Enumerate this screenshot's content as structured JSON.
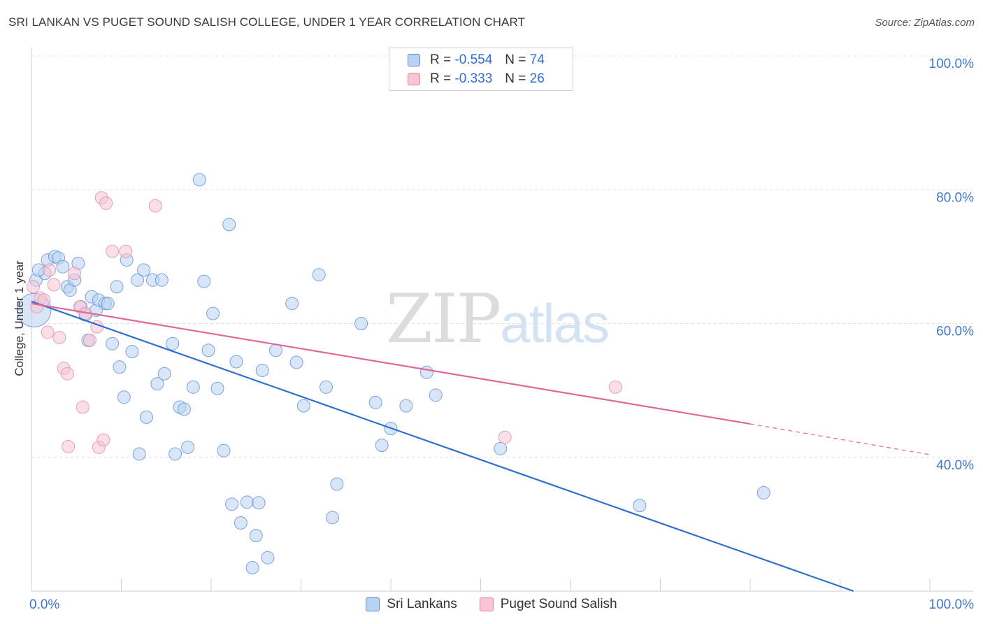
{
  "title": "SRI LANKAN VS PUGET SOUND SALISH COLLEGE, UNDER 1 YEAR CORRELATION CHART",
  "source": "Source: ZipAtlas.com",
  "watermark": {
    "zip": "ZIP",
    "atlas": "atlas"
  },
  "legend": [
    {
      "r_label": "R = ",
      "r_value": "-0.554",
      "n_label": "N = ",
      "n_value": "74",
      "fill": "#b8d2f3",
      "stroke": "#5b8fd6"
    },
    {
      "r_label": "R = ",
      "r_value": "-0.333",
      "n_label": "N = ",
      "n_value": "26",
      "fill": "#f8c4d4",
      "stroke": "#e58aa5"
    }
  ],
  "chart_data": {
    "type": "scatter",
    "xlabel": "",
    "ylabel": "College, Under 1 year",
    "xlim": [
      0,
      100
    ],
    "ylim": [
      20,
      100
    ],
    "x_tick_labels": [
      {
        "value": 0,
        "label": "0.0%"
      },
      {
        "value": 100,
        "label": "100.0%"
      }
    ],
    "y_tick_labels": [
      {
        "value": 100,
        "label": "100.0%"
      },
      {
        "value": 80,
        "label": "80.0%"
      },
      {
        "value": 60,
        "label": "60.0%"
      },
      {
        "value": 40,
        "label": "40.0%"
      }
    ],
    "grid": "horizontal dashed",
    "series": [
      {
        "name": "Sri Lankans",
        "color": "#5b8fd6",
        "fill": "#b8d2f3",
        "trend": {
          "x1": 0,
          "y1": 63.3,
          "x2": 91.5,
          "y2": 20
        },
        "points": [
          [
            0.3,
            62.0
          ],
          [
            0.5,
            66.5
          ],
          [
            1.5,
            67.5
          ],
          [
            1.8,
            69.5
          ],
          [
            2.6,
            70.0
          ],
          [
            3.0,
            69.8
          ],
          [
            3.5,
            68.5
          ],
          [
            4.0,
            65.5
          ],
          [
            4.3,
            65.0
          ],
          [
            4.8,
            66.5
          ],
          [
            5.2,
            69.0
          ],
          [
            5.5,
            62.5
          ],
          [
            6.0,
            61.3
          ],
          [
            6.3,
            57.5
          ],
          [
            6.7,
            64.0
          ],
          [
            7.2,
            62.0
          ],
          [
            7.5,
            63.5
          ],
          [
            8.2,
            63.0
          ],
          [
            8.5,
            63.0
          ],
          [
            9.0,
            57.0
          ],
          [
            9.5,
            65.5
          ],
          [
            9.8,
            53.5
          ],
          [
            10.3,
            49.0
          ],
          [
            10.6,
            69.5
          ],
          [
            11.2,
            55.8
          ],
          [
            11.8,
            66.5
          ],
          [
            12.0,
            40.5
          ],
          [
            12.5,
            68.0
          ],
          [
            12.8,
            46.0
          ],
          [
            13.5,
            66.5
          ],
          [
            14.0,
            51.0
          ],
          [
            14.5,
            66.5
          ],
          [
            14.8,
            52.5
          ],
          [
            15.7,
            57.0
          ],
          [
            16.0,
            40.5
          ],
          [
            16.5,
            47.5
          ],
          [
            17.0,
            47.2
          ],
          [
            17.4,
            41.5
          ],
          [
            18.0,
            50.5
          ],
          [
            18.7,
            81.5
          ],
          [
            19.2,
            66.3
          ],
          [
            19.7,
            56.0
          ],
          [
            20.2,
            61.5
          ],
          [
            20.7,
            50.3
          ],
          [
            21.4,
            41.0
          ],
          [
            22.0,
            74.8
          ],
          [
            22.3,
            33.0
          ],
          [
            22.8,
            54.3
          ],
          [
            23.3,
            30.2
          ],
          [
            24.0,
            33.3
          ],
          [
            24.6,
            23.5
          ],
          [
            25.0,
            28.3
          ],
          [
            25.3,
            33.2
          ],
          [
            25.7,
            53.0
          ],
          [
            26.3,
            25.0
          ],
          [
            27.2,
            56.0
          ],
          [
            29.0,
            63.0
          ],
          [
            29.5,
            54.2
          ],
          [
            30.3,
            47.7
          ],
          [
            32.0,
            67.3
          ],
          [
            32.8,
            50.5
          ],
          [
            33.5,
            31.0
          ],
          [
            34.0,
            36.0
          ],
          [
            36.7,
            60.0
          ],
          [
            38.3,
            48.2
          ],
          [
            39.0,
            41.8
          ],
          [
            40.0,
            44.3
          ],
          [
            41.7,
            47.7
          ],
          [
            44.0,
            52.7
          ],
          [
            45.0,
            49.3
          ],
          [
            52.2,
            41.3
          ],
          [
            67.7,
            32.8
          ],
          [
            81.5,
            34.7
          ],
          [
            0.8,
            68.0
          ]
        ]
      },
      {
        "name": "Puget Sound Salish",
        "color": "#e58aa5",
        "fill": "#f8c4d4",
        "trend": {
          "x1": 0,
          "y1": 63.0,
          "x2": 80,
          "y2": 45.0,
          "dash_to_x": 100,
          "dash_to_y": 40.4
        },
        "points": [
          [
            0.2,
            65.5
          ],
          [
            0.6,
            62.5
          ],
          [
            1.0,
            63.8
          ],
          [
            1.4,
            63.5
          ],
          [
            1.8,
            58.7
          ],
          [
            2.0,
            68.0
          ],
          [
            2.5,
            65.8
          ],
          [
            3.1,
            57.9
          ],
          [
            3.6,
            53.3
          ],
          [
            4.0,
            52.5
          ],
          [
            4.1,
            41.6
          ],
          [
            4.8,
            67.5
          ],
          [
            5.4,
            62.5
          ],
          [
            5.7,
            47.5
          ],
          [
            6.0,
            61.5
          ],
          [
            6.5,
            57.5
          ],
          [
            7.3,
            59.5
          ],
          [
            7.8,
            78.8
          ],
          [
            7.5,
            41.5
          ],
          [
            8.0,
            42.6
          ],
          [
            8.3,
            78.0
          ],
          [
            9.0,
            70.8
          ],
          [
            10.5,
            70.8
          ],
          [
            13.8,
            77.6
          ],
          [
            52.7,
            43.0
          ],
          [
            65.0,
            50.5
          ]
        ]
      }
    ]
  }
}
